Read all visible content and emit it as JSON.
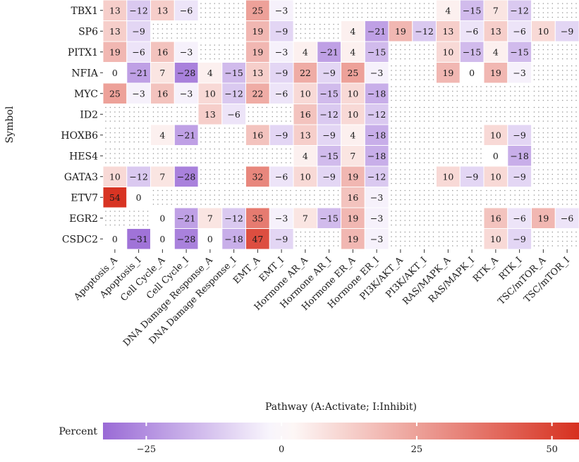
{
  "chart_data": {
    "type": "heatmap",
    "xlabel": "Pathway (A:Activate; I:Inhibit)",
    "ylabel": "Symbol",
    "legend_title": "Percent",
    "legend_ticks": [
      -25,
      0,
      25,
      50
    ],
    "legend_range": [
      -33,
      55
    ],
    "legend_placement": "bottom",
    "colors": {
      "low": "#9a6ad6",
      "mid": "#ffffff",
      "high": "#d7301f"
    },
    "rows": [
      "TBX1",
      "SP6",
      "PITX1",
      "NFIA",
      "MYC",
      "ID2",
      "HOXB6",
      "HES4",
      "GATA3",
      "ETV7",
      "EGR2",
      "CSDC2"
    ],
    "columns": [
      "Apoptosis_A",
      "Apoptosis_I",
      "Cell Cycle_A",
      "Cell Cycle_I",
      "DNA Damage Response_A",
      "DNA Damage Response_I",
      "EMT_A",
      "EMT_I",
      "Hormone AR_A",
      "Hormone AR_I",
      "Hormone ER_A",
      "Hormone ER_I",
      "PI3K/AKT_A",
      "PI3K/AKT_I",
      "RAS/MAPK_A",
      "RAS/MAPK_I",
      "RTK_A",
      "RTK_I",
      "TSC/mTOR_A",
      "TSC/mTOR_I"
    ],
    "values": [
      [
        13,
        -12,
        13,
        -6,
        null,
        null,
        25,
        -3,
        null,
        null,
        null,
        null,
        null,
        null,
        4,
        -15,
        7,
        -12,
        null,
        null
      ],
      [
        13,
        -9,
        null,
        null,
        null,
        null,
        19,
        -9,
        null,
        null,
        4,
        -21,
        19,
        -12,
        13,
        -6,
        13,
        -6,
        10,
        -9
      ],
      [
        19,
        -6,
        16,
        -3,
        null,
        null,
        19,
        -3,
        4,
        -21,
        4,
        -15,
        null,
        null,
        10,
        -15,
        4,
        -15,
        null,
        null
      ],
      [
        0,
        -21,
        7,
        -28,
        4,
        -15,
        13,
        -9,
        22,
        -9,
        25,
        -3,
        null,
        null,
        19,
        0,
        19,
        -3,
        null,
        null
      ],
      [
        25,
        -3,
        16,
        -3,
        10,
        -12,
        22,
        -6,
        10,
        -15,
        10,
        -18,
        null,
        null,
        null,
        null,
        null,
        null,
        null,
        null
      ],
      [
        null,
        null,
        null,
        null,
        13,
        -6,
        null,
        null,
        16,
        -12,
        10,
        -12,
        null,
        null,
        null,
        null,
        null,
        null,
        null,
        null
      ],
      [
        null,
        null,
        4,
        -21,
        null,
        null,
        16,
        -9,
        13,
        -9,
        4,
        -18,
        null,
        null,
        null,
        null,
        10,
        -9,
        null,
        null
      ],
      [
        null,
        null,
        null,
        null,
        null,
        null,
        null,
        null,
        4,
        -15,
        7,
        -18,
        null,
        null,
        null,
        null,
        0,
        -18,
        null,
        null
      ],
      [
        10,
        -12,
        7,
        -28,
        null,
        null,
        32,
        -6,
        10,
        -9,
        19,
        -12,
        null,
        null,
        10,
        -9,
        10,
        -9,
        null,
        null
      ],
      [
        54,
        0,
        null,
        null,
        null,
        null,
        null,
        null,
        null,
        null,
        16,
        -3,
        null,
        null,
        null,
        null,
        null,
        null,
        null,
        null
      ],
      [
        null,
        null,
        0,
        -21,
        7,
        -12,
        35,
        -3,
        7,
        -15,
        19,
        -3,
        null,
        null,
        null,
        null,
        16,
        -6,
        19,
        -6
      ],
      [
        0,
        -31,
        0,
        -28,
        0,
        -18,
        47,
        -9,
        null,
        null,
        19,
        -3,
        null,
        null,
        null,
        null,
        10,
        -9,
        null,
        null
      ]
    ]
  }
}
